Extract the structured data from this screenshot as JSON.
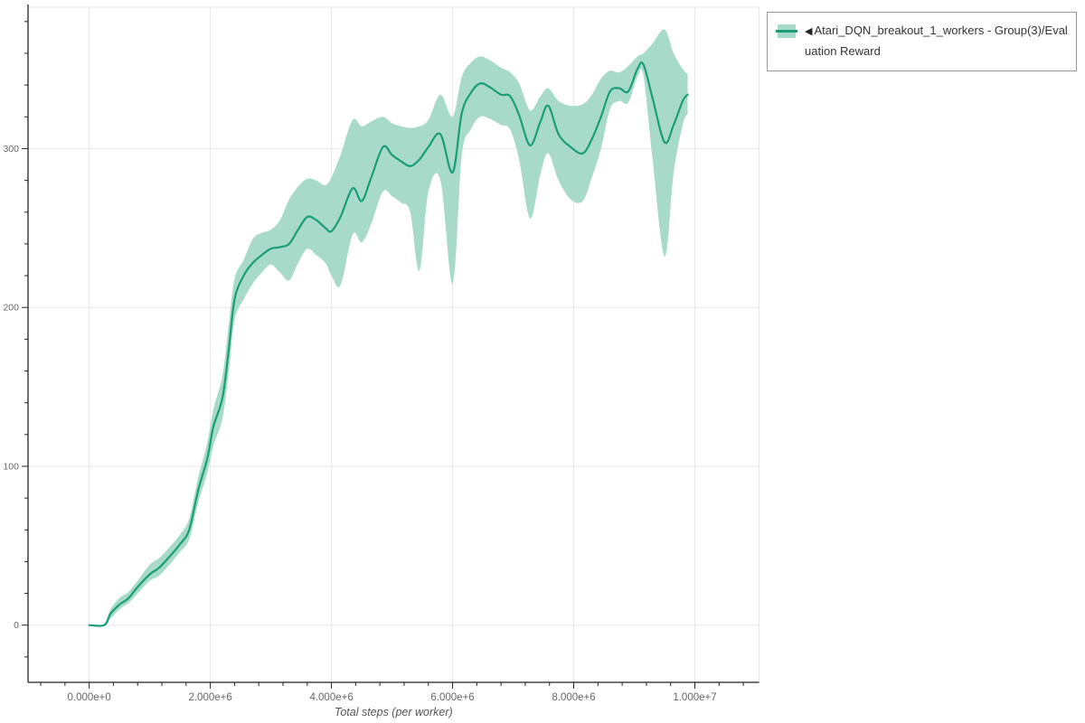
{
  "legend": {
    "collapse_icon": "◀",
    "items": [
      {
        "label": "Atari_DQN_breakout_1_workers - Group(3)/Evaluation Reward",
        "line_color": "#1b9e77",
        "band_color": "#a7dac8"
      }
    ]
  },
  "chart_data": {
    "type": "line",
    "title": "",
    "xlabel": "Total steps (per worker)",
    "ylabel": "",
    "grid": true,
    "legend_position": "outside-top-right",
    "xlim": [
      -1010000,
      11060000
    ],
    "ylim": [
      -36,
      389
    ],
    "x_major_ticks": [
      {
        "value": 0,
        "label": "0.000e+0"
      },
      {
        "value": 2000000,
        "label": "2.000e+6"
      },
      {
        "value": 4000000,
        "label": "4.000e+6"
      },
      {
        "value": 6000000,
        "label": "6.000e+6"
      },
      {
        "value": 8000000,
        "label": "8.000e+6"
      },
      {
        "value": 10000000,
        "label": "1.000e+7"
      }
    ],
    "x_minor_tick_step": 400000,
    "y_major_ticks": [
      {
        "value": 0,
        "label": "0"
      },
      {
        "value": 100,
        "label": "100"
      },
      {
        "value": 200,
        "label": "200"
      },
      {
        "value": 300,
        "label": "300"
      }
    ],
    "y_minor_tick_step": 20,
    "colors": {
      "line": "#1b9e77",
      "band": "#a7dac8",
      "grid": "#e7e7e7",
      "spine": "#222222",
      "tick_label": "#666666",
      "axis_title": "#555555"
    },
    "series": [
      {
        "name": "Atari_DQN_breakout_1_workers - Group(3)/Evaluation Reward",
        "color": "#1b9e77",
        "band_color": "#a7dac8",
        "x": [
          0,
          250000,
          350000,
          500000,
          650000,
          800000,
          1000000,
          1150000,
          1300000,
          1500000,
          1650000,
          1800000,
          1950000,
          2050000,
          2200000,
          2300000,
          2400000,
          2550000,
          2700000,
          2850000,
          3000000,
          3150000,
          3300000,
          3450000,
          3600000,
          3750000,
          3900000,
          4000000,
          4150000,
          4350000,
          4500000,
          4650000,
          4850000,
          5000000,
          5150000,
          5300000,
          5450000,
          5600000,
          5800000,
          6000000,
          6150000,
          6300000,
          6450000,
          6600000,
          6800000,
          6950000,
          7100000,
          7280000,
          7450000,
          7580000,
          7750000,
          7950000,
          8150000,
          8300000,
          8450000,
          8600000,
          8750000,
          8900000,
          9050000,
          9150000,
          9300000,
          9500000,
          9650000,
          9800000,
          9880000
        ],
        "mean": [
          0,
          0,
          7,
          13,
          17,
          24,
          32,
          36,
          42,
          51,
          60,
          85,
          105,
          125,
          143,
          172,
          205,
          220,
          228,
          233,
          237,
          238,
          240,
          249,
          257,
          255,
          250,
          248,
          257,
          275,
          267,
          281,
          301,
          296,
          292,
          289,
          293,
          301,
          309,
          285,
          322,
          335,
          341,
          339,
          334,
          333,
          321,
          302,
          317,
          327,
          309,
          301,
          297,
          306,
          320,
          336,
          338,
          336,
          350,
          353,
          332,
          304,
          315,
          330,
          334
        ],
        "band_low": [
          0,
          0,
          4,
          10,
          14,
          20,
          28,
          31,
          37,
          46,
          54,
          77,
          96,
          113,
          130,
          158,
          192,
          205,
          215,
          222,
          227,
          222,
          217,
          228,
          237,
          233,
          228,
          220,
          214,
          246,
          241,
          252,
          273,
          270,
          266,
          260,
          223,
          273,
          280,
          215,
          295,
          312,
          320,
          319,
          315,
          312,
          293,
          256,
          284,
          297,
          280,
          268,
          267,
          282,
          300,
          325,
          330,
          329,
          345,
          346,
          294,
          232,
          285,
          315,
          322
        ],
        "band_high": [
          0,
          1,
          10,
          17,
          21,
          28,
          38,
          42,
          48,
          57,
          67,
          93,
          115,
          136,
          157,
          188,
          218,
          230,
          243,
          247,
          249,
          255,
          268,
          276,
          281,
          280,
          277,
          282,
          296,
          318,
          314,
          317,
          320,
          316,
          314,
          313,
          314,
          318,
          334,
          320,
          345,
          354,
          358,
          356,
          351,
          348,
          341,
          324,
          333,
          338,
          330,
          327,
          328,
          334,
          344,
          349,
          348,
          352,
          358,
          360,
          366,
          375,
          360,
          350,
          347
        ]
      }
    ]
  }
}
